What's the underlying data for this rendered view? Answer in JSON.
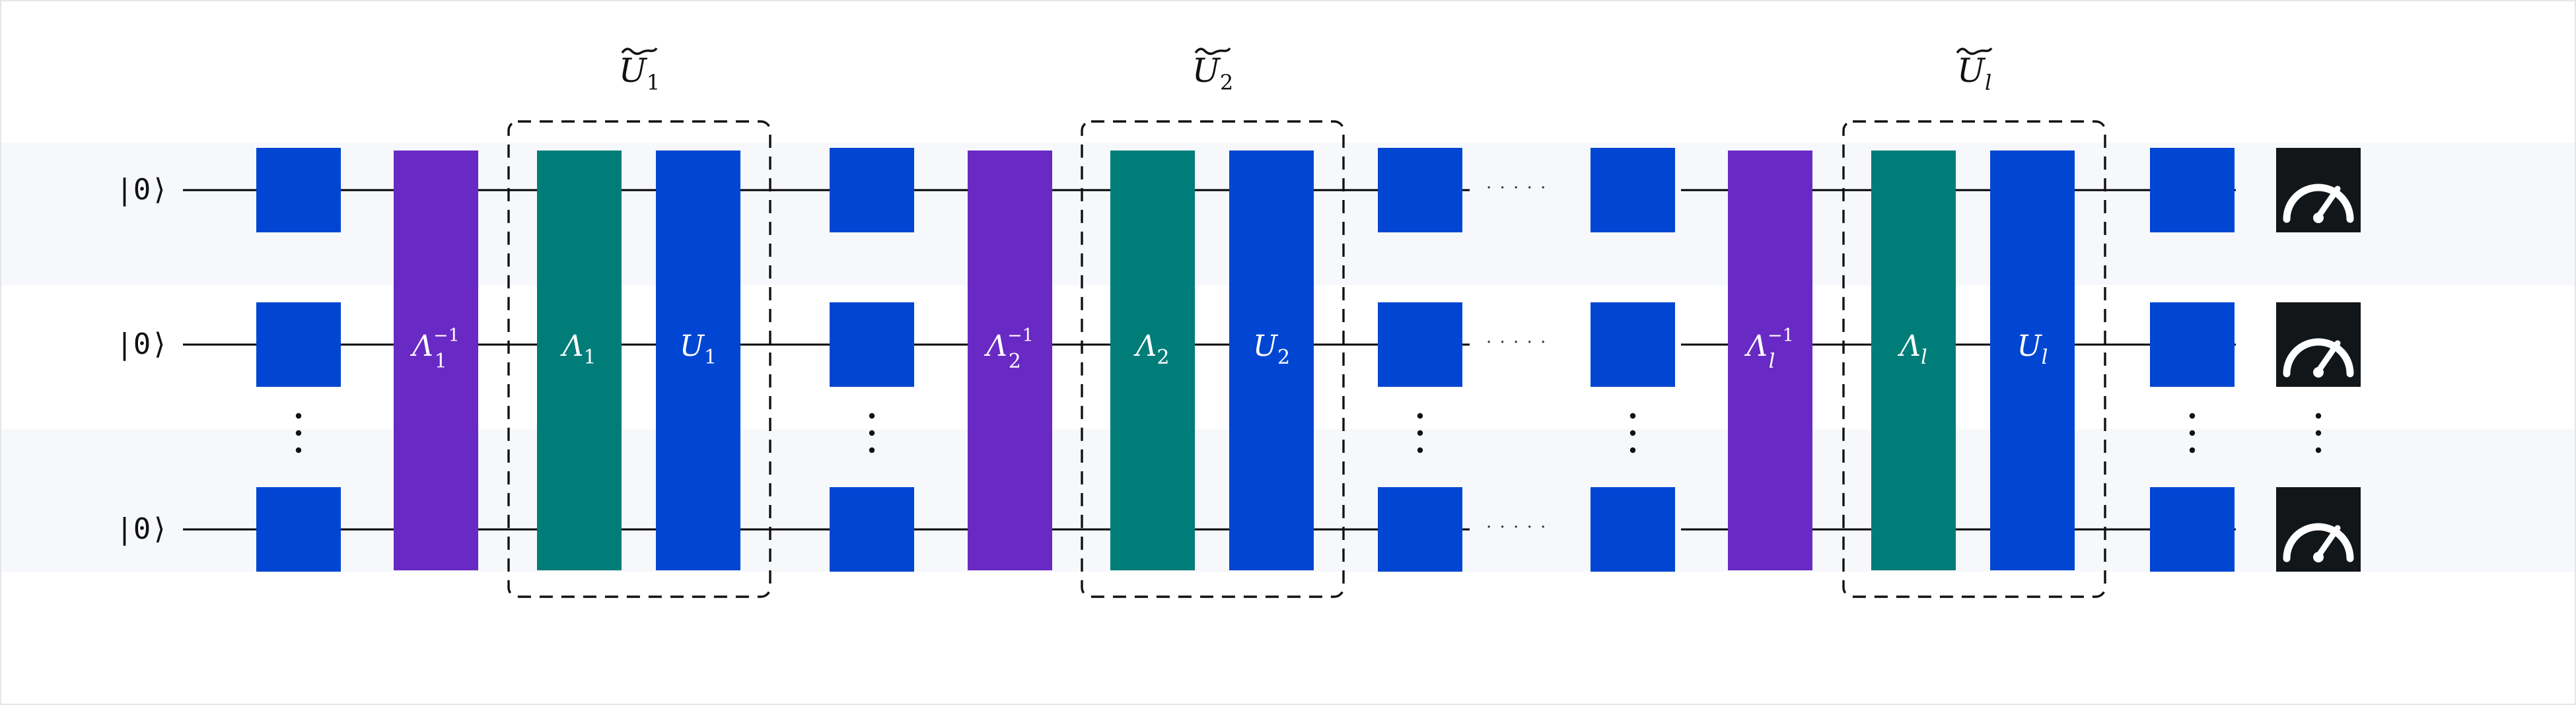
{
  "diagram": {
    "qubits": [
      {
        "label": "|0⟩"
      },
      {
        "label": "|0⟩"
      },
      {
        "label": "|0⟩"
      }
    ],
    "vertical_ellipsis": "⋮",
    "horizontal_ellipsis": "· · · · ·",
    "groups": [
      {
        "title_base": "U",
        "title_sub": "1",
        "lambda_inv": {
          "base": "Λ",
          "sup": "−1",
          "sub": "1"
        },
        "lambda": {
          "base": "Λ",
          "sub": "1"
        },
        "unitary": {
          "base": "U",
          "sub": "1"
        }
      },
      {
        "title_base": "U",
        "title_sub": "2",
        "lambda_inv": {
          "base": "Λ",
          "sup": "−1",
          "sub": "2"
        },
        "lambda": {
          "base": "Λ",
          "sub": "2"
        },
        "unitary": {
          "base": "U",
          "sub": "2"
        }
      },
      {
        "title_base": "U",
        "title_sub": "l",
        "lambda_inv": {
          "base": "Λ",
          "sup": "−1",
          "sub": "l"
        },
        "lambda": {
          "base": "Λ",
          "sub": "l"
        },
        "unitary": {
          "base": "U",
          "sub": "l"
        }
      }
    ],
    "colors": {
      "single_gate": "#0046d2",
      "lambda_inv": "#6929c4",
      "lambda": "#007d79",
      "unitary": "#0046d2",
      "meter": "#121619",
      "band": "#f6f8fb",
      "wire": "#000000",
      "dashed": "#111111"
    },
    "icons": [
      "measurement-meter-icon"
    ]
  }
}
